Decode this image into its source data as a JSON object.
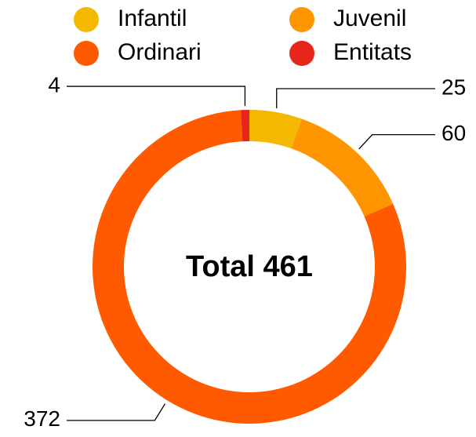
{
  "chart_data": {
    "type": "donut",
    "center_label": "Total 461",
    "categories": [
      "Infantil",
      "Juvenil",
      "Ordinari",
      "Entitats"
    ],
    "values": [
      25,
      60,
      372,
      4
    ],
    "colors": [
      "#f5b800",
      "#ff9500",
      "#ff5a00",
      "#e8251a"
    ]
  }
}
